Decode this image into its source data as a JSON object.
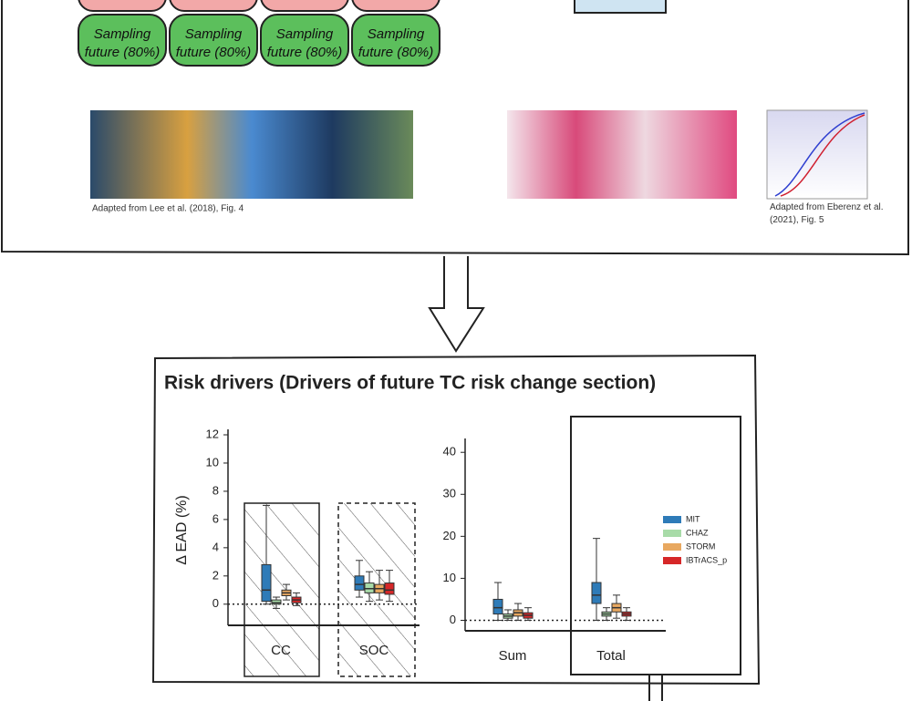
{
  "top_panel": {
    "sampling_pills": [
      [
        "Sampling",
        "future (80%)"
      ],
      [
        "Sampling",
        "future (80%)"
      ],
      [
        "Sampling",
        "future (80%)"
      ],
      [
        "Sampling",
        "future (80%)"
      ]
    ],
    "captions": [
      "Adapted from Lee et al. (2018), Fig. 4",
      "Adapted from Eberenz et al. (2021), Fig. 5"
    ]
  },
  "bottom_panel": {
    "title": "Risk drivers (Drivers of future TC risk change section)",
    "charts": [
      {
        "type": "box",
        "ylabel": "Δ EAD (%)",
        "categories": [
          "CC",
          "SOC"
        ],
        "ylim": [
          -1.5,
          12
        ],
        "yticks": [
          0,
          2,
          4,
          6,
          8,
          10,
          12
        ],
        "series": [
          {
            "name": "MIT",
            "color": "#2e7bb8",
            "boxes": [
              [
                0,
                0.2,
                1.0,
                2.8,
                7.0
              ],
              [
                0.5,
                1.0,
                1.4,
                2.0,
                3.1
              ]
            ]
          },
          {
            "name": "CHAZ",
            "color": "#a8dba8",
            "boxes": [
              [
                -0.3,
                0,
                0.1,
                0.3,
                0.5
              ],
              [
                0.2,
                0.8,
                1.1,
                1.5,
                2.3
              ]
            ]
          },
          {
            "name": "STORM",
            "color": "#e8a860",
            "boxes": [
              [
                0.3,
                0.6,
                0.8,
                1.0,
                1.4
              ],
              [
                0.3,
                0.8,
                1.1,
                1.4,
                2.4
              ]
            ]
          },
          {
            "name": "IBTrACS_p",
            "color": "#d62728",
            "boxes": [
              [
                -0.1,
                0.1,
                0.3,
                0.5,
                0.8
              ],
              [
                0.2,
                0.7,
                1.0,
                1.5,
                2.4
              ]
            ]
          }
        ]
      },
      {
        "type": "box",
        "categories": [
          "Sum",
          "Total"
        ],
        "ylim": [
          -2.5,
          42
        ],
        "yticks": [
          0,
          10,
          20,
          30,
          40
        ],
        "legend": "right",
        "series": [
          {
            "name": "MIT",
            "color": "#2e7bb8",
            "boxes": [
              [
                0,
                1.5,
                3,
                5,
                9
              ],
              [
                0,
                4,
                6,
                9,
                19.5
              ]
            ]
          },
          {
            "name": "CHAZ",
            "color": "#a8dba8",
            "boxes": [
              [
                0,
                0.5,
                1,
                1.5,
                2.5
              ],
              [
                0,
                1,
                1.5,
                2,
                3
              ]
            ]
          },
          {
            "name": "STORM",
            "color": "#e8a860",
            "boxes": [
              [
                0,
                1,
                1.8,
                2.5,
                4
              ],
              [
                0.5,
                2,
                3,
                4,
                6
              ]
            ]
          },
          {
            "name": "IBTrACS_p",
            "color": "#d62728",
            "boxes": [
              [
                0,
                0.5,
                1.2,
                1.8,
                3
              ],
              [
                0,
                1,
                1.5,
                2,
                3
              ]
            ]
          }
        ]
      }
    ]
  }
}
